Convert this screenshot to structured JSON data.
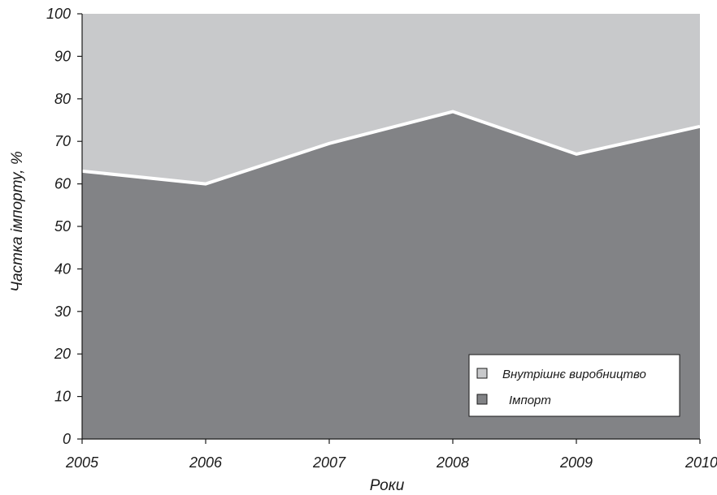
{
  "chart_data": {
    "type": "area",
    "stacked": true,
    "percent": true,
    "x": [
      "2005",
      "2006",
      "2007",
      "2008",
      "2009",
      "2010"
    ],
    "series": [
      {
        "name": "Імпорт",
        "values": [
          63,
          60,
          69.5,
          77,
          67,
          73.5
        ],
        "color": "#828386"
      },
      {
        "name": "Внутрішнє виробництво",
        "values": [
          37,
          40,
          30.5,
          23,
          33,
          26.5
        ],
        "color": "#c8c9cb"
      }
    ],
    "xlabel": "Роки",
    "ylabel": "Частка імпорту, %",
    "ylim": [
      0,
      100
    ],
    "yticks": [
      0,
      10,
      20,
      30,
      40,
      50,
      60,
      70,
      80,
      90,
      100
    ],
    "grid": false,
    "legend_position": "bottom-right",
    "boundary_line_color": "#ffffff"
  }
}
